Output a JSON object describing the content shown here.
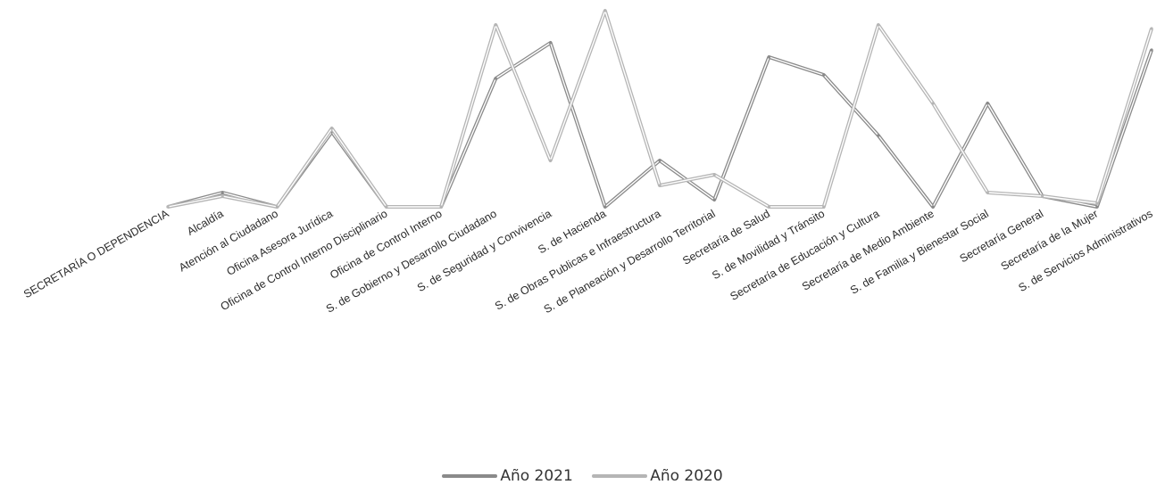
{
  "chart_data": {
    "type": "line",
    "categories": [
      "SECRETARÍA O DEPENDENCIA",
      "Alcaldía",
      "Atención al Ciudadano",
      "Oficina Asesora Jurídica",
      "Oficina de Control Interno Disciplinario",
      "Oficina de Control Interno",
      "S. de Gobierno y Desarrollo Ciudadano",
      "S. de Seguridad y Convivencia",
      "S. de Hacienda",
      "S. de Obras Publicas e Infraestructura",
      "S. de Planeación y Desarrollo Territorial",
      "Secretaría de Salud",
      "S. de Movilidad y Tránsito",
      "Secretaría de Educación y Cultura",
      "Secretaría de Medio Ambiente",
      "S. de Familia y Bienestar Social",
      "Secretaría General",
      "Secretaría de la Mujer",
      "S. de Servicios Administrativos"
    ],
    "series": [
      {
        "name": "Año 2021",
        "color": "#8a8a8a",
        "values": [
          0,
          4,
          0,
          21,
          0,
          0,
          36,
          46,
          0,
          13,
          2,
          42,
          37,
          20,
          0,
          29,
          3,
          0,
          44
        ]
      },
      {
        "name": "Año 2020",
        "color": "#b5b5b5",
        "values": [
          0,
          3,
          0,
          22,
          0,
          0,
          51,
          13,
          55,
          6,
          9,
          0,
          0,
          51,
          29,
          4,
          3,
          1,
          50
        ]
      }
    ],
    "ylim": [
      0,
      56
    ],
    "grid": false,
    "legend_position": "bottom"
  }
}
